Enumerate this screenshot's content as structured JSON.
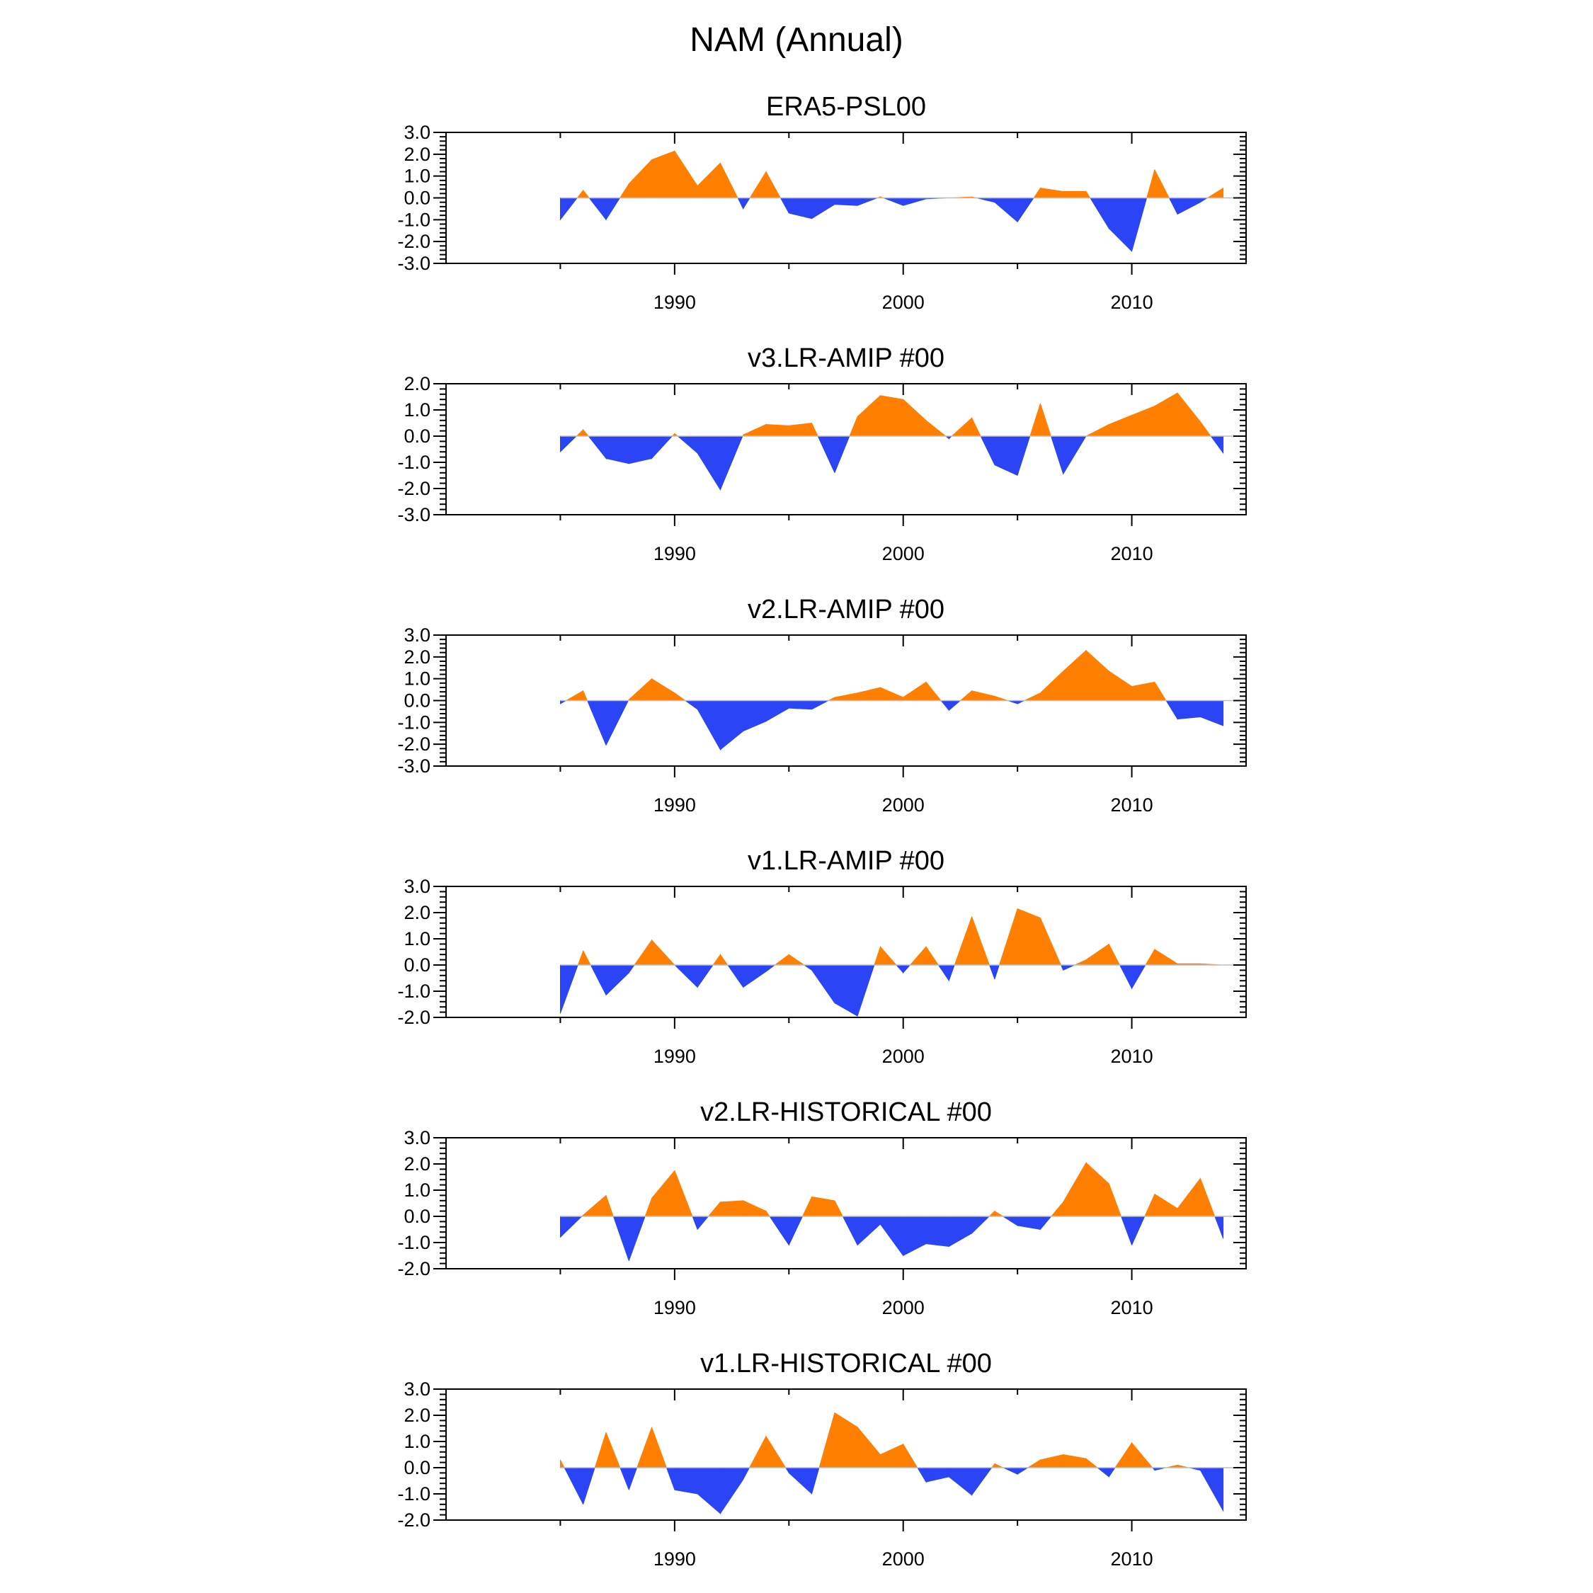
{
  "title": "NAM (Annual)",
  "colors": {
    "positive": "#FF7F00",
    "negative": "#2B44F5",
    "axis": "#000000",
    "zero_line": "#BDBDBD"
  },
  "chart_data": [
    {
      "type": "area",
      "title": "ERA5-PSL00",
      "x_start": 1985,
      "xlim": [
        1980,
        2015
      ],
      "ylim": [
        -3,
        3
      ],
      "yticks": [
        -3,
        -2,
        -1,
        0,
        1,
        2,
        3
      ],
      "ytick_labels": [
        "-3.0",
        "-2.0",
        "-1.0",
        "0.0",
        "1.0",
        "2.0",
        "3.0"
      ],
      "xticks": [
        1990,
        2000,
        2010
      ],
      "xtick_labels": [
        "1990",
        "2000",
        "2010"
      ],
      "values": [
        -1.0,
        0.35,
        -1.0,
        0.65,
        1.75,
        2.15,
        0.55,
        1.6,
        -0.5,
        1.2,
        -0.7,
        -0.95,
        -0.3,
        -0.35,
        0.05,
        -0.35,
        -0.05,
        0.0,
        0.05,
        -0.2,
        -1.1,
        0.45,
        0.3,
        0.3,
        -1.4,
        -2.45,
        1.3,
        -0.75,
        -0.2,
        0.45
      ]
    },
    {
      "type": "area",
      "title": "v3.LR-AMIP  #00",
      "x_start": 1985,
      "xlim": [
        1980,
        2015
      ],
      "ylim": [
        -3,
        2
      ],
      "yticks": [
        -3,
        -2,
        -1,
        0,
        1,
        2
      ],
      "ytick_labels": [
        "-3.0",
        "-2.0",
        "-1.0",
        "0.0",
        "1.0",
        "2.0"
      ],
      "xticks": [
        1990,
        2000,
        2010
      ],
      "xtick_labels": [
        "1990",
        "2000",
        "2010"
      ],
      "values": [
        -0.6,
        0.25,
        -0.85,
        -1.05,
        -0.85,
        0.1,
        -0.65,
        -2.05,
        0.05,
        0.45,
        0.4,
        0.5,
        -1.4,
        0.75,
        1.55,
        1.4,
        0.6,
        -0.1,
        0.7,
        -1.1,
        -1.5,
        1.25,
        -1.45,
        0.0,
        0.45,
        0.8,
        1.15,
        1.65,
        0.55,
        -0.65
      ]
    },
    {
      "type": "area",
      "title": "v2.LR-AMIP  #00",
      "x_start": 1985,
      "xlim": [
        1980,
        2015
      ],
      "ylim": [
        -3,
        3
      ],
      "yticks": [
        -3,
        -2,
        -1,
        0,
        1,
        2,
        3
      ],
      "ytick_labels": [
        "-3.0",
        "-2.0",
        "-1.0",
        "0.0",
        "1.0",
        "2.0",
        "3.0"
      ],
      "xticks": [
        1990,
        2000,
        2010
      ],
      "xtick_labels": [
        "1990",
        "2000",
        "2010"
      ],
      "values": [
        -0.15,
        0.45,
        -2.05,
        0.05,
        1.0,
        0.35,
        -0.4,
        -2.25,
        -1.4,
        -0.95,
        -0.35,
        -0.4,
        0.15,
        0.35,
        0.6,
        0.15,
        0.85,
        -0.45,
        0.45,
        0.2,
        -0.15,
        0.35,
        1.35,
        2.3,
        1.35,
        0.65,
        0.85,
        -0.85,
        -0.75,
        -1.15
      ]
    },
    {
      "type": "area",
      "title": "v1.LR-AMIP  #00",
      "x_start": 1985,
      "xlim": [
        1980,
        2015
      ],
      "ylim": [
        -2,
        3
      ],
      "yticks": [
        -2,
        -1,
        0,
        1,
        2,
        3
      ],
      "ytick_labels": [
        "-2.0",
        "-1.0",
        "0.0",
        "1.0",
        "2.0",
        "3.0"
      ],
      "xticks": [
        1990,
        2000,
        2010
      ],
      "xtick_labels": [
        "1990",
        "2000",
        "2010"
      ],
      "values": [
        -1.85,
        0.55,
        -1.15,
        -0.3,
        0.95,
        0.0,
        -0.85,
        0.4,
        -0.85,
        -0.25,
        0.4,
        -0.2,
        -1.45,
        -1.95,
        0.7,
        -0.3,
        0.7,
        -0.6,
        1.85,
        -0.55,
        2.15,
        1.8,
        -0.2,
        0.2,
        0.8,
        -0.9,
        0.6,
        0.05,
        0.05,
        0.0
      ]
    },
    {
      "type": "area",
      "title": "v2.LR-HISTORICAL  #00",
      "x_start": 1985,
      "xlim": [
        1980,
        2015
      ],
      "ylim": [
        -2,
        3
      ],
      "yticks": [
        -2,
        -1,
        0,
        1,
        2,
        3
      ],
      "ytick_labels": [
        "-2.0",
        "-1.0",
        "0.0",
        "1.0",
        "2.0",
        "3.0"
      ],
      "xticks": [
        1990,
        2000,
        2010
      ],
      "xtick_labels": [
        "1990",
        "2000",
        "2010"
      ],
      "values": [
        -0.8,
        0.05,
        0.8,
        -1.7,
        0.7,
        1.75,
        -0.5,
        0.55,
        0.6,
        0.2,
        -1.1,
        0.75,
        0.6,
        -1.1,
        -0.3,
        -1.5,
        -1.05,
        -1.15,
        -0.65,
        0.2,
        -0.35,
        -0.5,
        0.55,
        2.05,
        1.25,
        -1.1,
        0.85,
        0.3,
        1.45,
        -0.85
      ]
    },
    {
      "type": "area",
      "title": "v1.LR-HISTORICAL  #00",
      "x_start": 1985,
      "xlim": [
        1980,
        2015
      ],
      "ylim": [
        -2,
        3
      ],
      "yticks": [
        -2,
        -1,
        0,
        1,
        2,
        3
      ],
      "ytick_labels": [
        "-2.0",
        "-1.0",
        "0.0",
        "1.0",
        "2.0",
        "3.0"
      ],
      "xticks": [
        1990,
        2000,
        2010
      ],
      "xtick_labels": [
        "1990",
        "2000",
        "2010"
      ],
      "values": [
        0.3,
        -1.4,
        1.35,
        -0.85,
        1.55,
        -0.85,
        -1.0,
        -1.75,
        -0.45,
        1.2,
        -0.2,
        -1.0,
        2.1,
        1.55,
        0.5,
        0.9,
        -0.55,
        -0.35,
        -1.05,
        0.15,
        -0.25,
        0.3,
        0.5,
        0.35,
        -0.35,
        0.95,
        -0.1,
        0.1,
        -0.1,
        -1.65
      ]
    }
  ]
}
